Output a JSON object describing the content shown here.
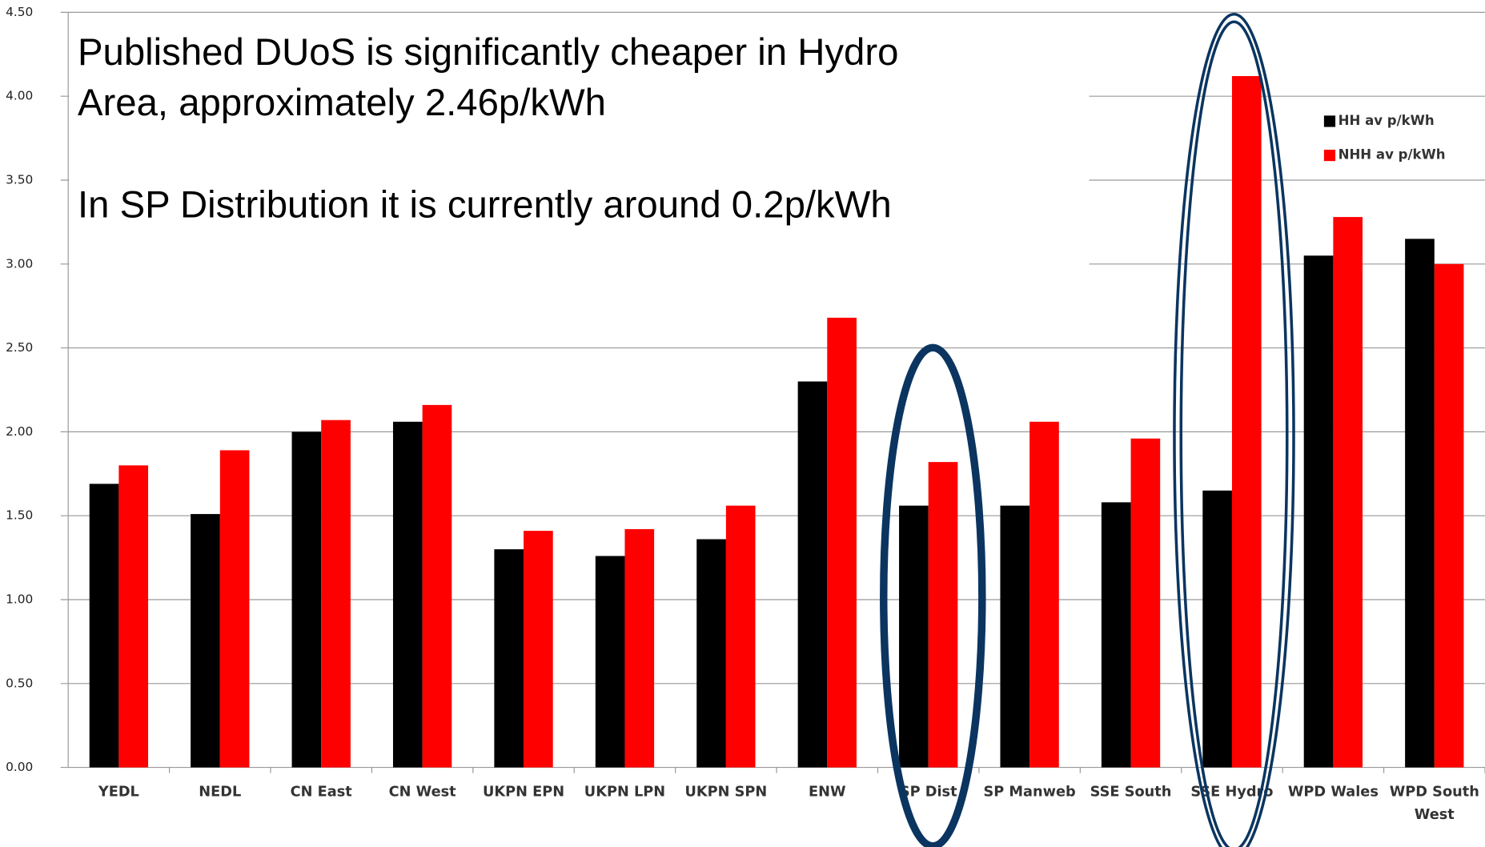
{
  "chart_data": {
    "type": "bar",
    "annotations": [
      "Published DUoS is significantly cheaper in Hydro",
      "Area, approximately 2.46p/kWh",
      "In SP Distribution it is currently around 0.2p/kWh"
    ],
    "categories": [
      "YEDL",
      "NEDL",
      "CN East",
      "CN West",
      "UKPN EPN",
      "UKPN LPN",
      "UKPN SPN",
      "ENW",
      "SP Dist",
      "SP Manweb",
      "SSE South",
      "SSE Hydro",
      "WPD Wales",
      "WPD South West"
    ],
    "series": [
      {
        "name": "HH av p/kWh",
        "color": "#000000",
        "values": [
          1.69,
          1.51,
          2.0,
          2.06,
          1.3,
          1.26,
          1.36,
          2.3,
          1.56,
          1.56,
          1.58,
          1.65,
          3.05,
          3.15
        ]
      },
      {
        "name": "NHH av p/kWh",
        "color": "#ff0000",
        "values": [
          1.8,
          1.89,
          2.07,
          2.16,
          1.41,
          1.42,
          1.56,
          2.68,
          1.82,
          2.06,
          1.96,
          4.12,
          3.28,
          3.0
        ]
      }
    ],
    "ylim": [
      0,
      4.5
    ],
    "yticks": [
      {
        "value": 0,
        "label": "0.00"
      },
      {
        "value": 0.5,
        "label": "0.50"
      },
      {
        "value": 1,
        "label": "1.00"
      },
      {
        "value": 1.5,
        "label": "1.50"
      },
      {
        "value": 2,
        "label": "2.00"
      },
      {
        "value": 2.5,
        "label": "2.50"
      },
      {
        "value": 3,
        "label": "3.00"
      },
      {
        "value": 3.5,
        "label": "3.50"
      },
      {
        "value": 4,
        "label": "4.00"
      },
      {
        "value": 4.5,
        "label": "4.50"
      }
    ],
    "grid": true
  }
}
